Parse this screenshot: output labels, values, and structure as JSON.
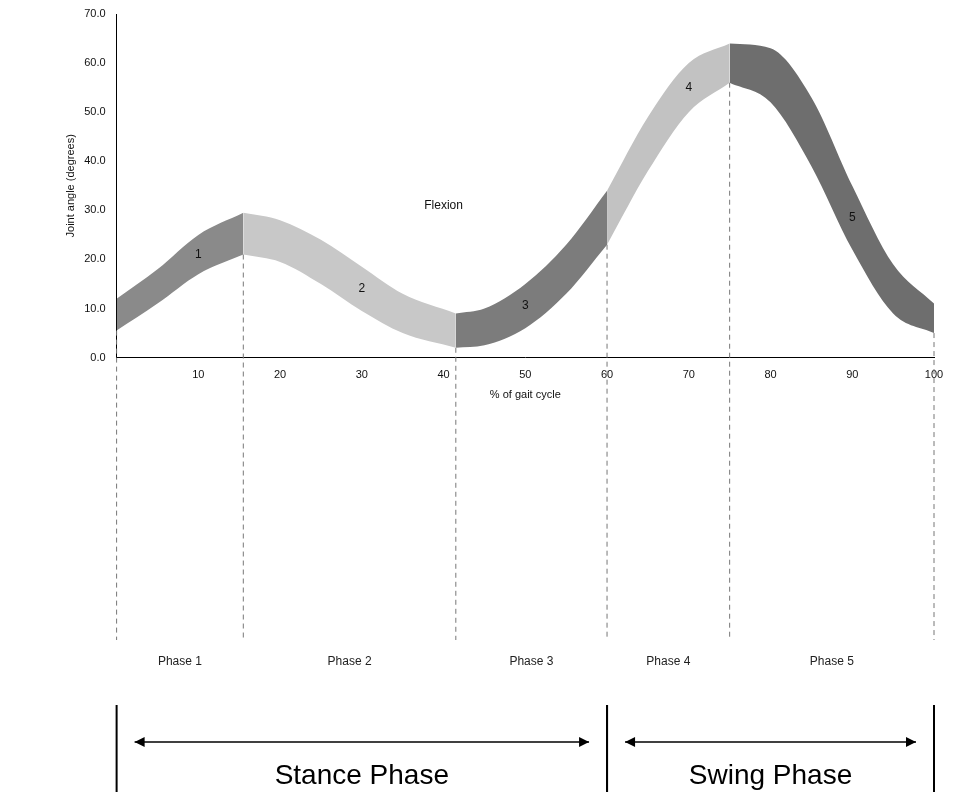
{
  "chart_data": {
    "type": "line",
    "x_label": "% of gait cycle",
    "y_label": "Joint angle (degrees)",
    "xlim": [
      0,
      100
    ],
    "xticks": [
      10,
      20,
      30,
      40,
      50,
      60,
      70,
      80,
      90,
      100
    ],
    "ylim": [
      0,
      70
    ],
    "yticks": [
      {
        "value": 0,
        "label": "0.0"
      },
      {
        "value": 10,
        "label": "10.0"
      },
      {
        "value": 20,
        "label": "20.0"
      },
      {
        "value": 30,
        "label": "30.0"
      },
      {
        "value": 40,
        "label": "40.0"
      },
      {
        "value": 50,
        "label": "50.0"
      },
      {
        "value": 60,
        "label": "60.0"
      },
      {
        "value": 70,
        "label": "70.0"
      }
    ],
    "grid": false,
    "annotations": [
      {
        "text": "Flexion",
        "x": 40,
        "y": 31
      }
    ],
    "series": [
      {
        "name": "1",
        "phase_label": "Phase 1",
        "color": "#8a8a8a",
        "x": [
          0,
          5,
          10,
          15.5
        ],
        "lower": [
          5.5,
          11,
          17,
          21
        ],
        "upper": [
          12,
          18,
          25,
          29.5
        ]
      },
      {
        "name": "2",
        "phase_label": "Phase 2",
        "color": "#c8c8c8",
        "x": [
          15.5,
          20,
          25,
          30,
          35,
          41.5
        ],
        "lower": [
          21,
          19.5,
          15,
          9.5,
          5,
          2
        ],
        "upper": [
          29.5,
          28,
          24,
          18.5,
          13,
          9
        ]
      },
      {
        "name": "3",
        "phase_label": "Phase 3",
        "color": "#7c7c7c",
        "x": [
          41.5,
          45,
          50,
          55,
          60
        ],
        "lower": [
          2,
          2.5,
          6,
          13,
          23
        ],
        "upper": [
          9,
          10,
          15,
          23,
          34
        ]
      },
      {
        "name": "4",
        "phase_label": "Phase 4",
        "color": "#c2c2c2",
        "x": [
          60,
          65,
          70,
          75
        ],
        "lower": [
          23,
          38,
          50,
          56
        ],
        "upper": [
          34,
          49,
          60,
          64
        ]
      },
      {
        "name": "5",
        "phase_label": "Phase 5",
        "color": "#6e6e6e",
        "x": [
          75,
          80,
          85,
          90,
          95,
          100
        ],
        "lower": [
          56,
          52,
          39,
          22,
          9,
          5
        ],
        "upper": [
          64,
          63,
          53,
          35,
          19,
          11
        ]
      }
    ],
    "spans": [
      {
        "label": "Stance Phase",
        "from": 0,
        "to": 60
      },
      {
        "label": "Swing Phase",
        "from": 60,
        "to": 100
      }
    ]
  }
}
